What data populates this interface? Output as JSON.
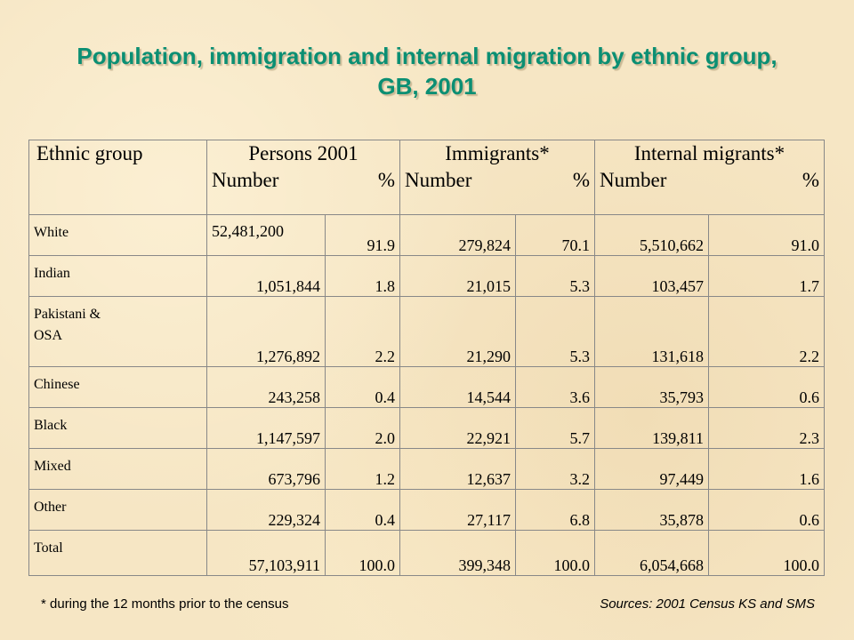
{
  "title": "Population, immigration and internal migration by ethnic group, GB, 2001",
  "header": {
    "ethnic_group": "Ethnic group",
    "persons": "Persons 2001",
    "immigrants": "Immigrants*",
    "internal": "Internal migrants*",
    "number": "Number",
    "percent": "%"
  },
  "rows": [
    {
      "label": "White",
      "persons_num": "52,481,200",
      "persons_pct": "91.9",
      "imm_num": "279,824",
      "imm_pct": "70.1",
      "int_num": "5,510,662",
      "int_pct": "91.0"
    },
    {
      "label": "Indian",
      "persons_num": "1,051,844",
      "persons_pct": "1.8",
      "imm_num": "21,015",
      "imm_pct": "5.3",
      "int_num": "103,457",
      "int_pct": "1.7"
    },
    {
      "label_line1": "Pakistani &",
      "label_line2": "OSA",
      "persons_num": "1,276,892",
      "persons_pct": "2.2",
      "imm_num": "21,290",
      "imm_pct": "5.3",
      "int_num": "131,618",
      "int_pct": "2.2"
    },
    {
      "label": "Chinese",
      "persons_num": "243,258",
      "persons_pct": "0.4",
      "imm_num": "14,544",
      "imm_pct": "3.6",
      "int_num": "35,793",
      "int_pct": "0.6"
    },
    {
      "label": "Black",
      "persons_num": "1,147,597",
      "persons_pct": "2.0",
      "imm_num": "22,921",
      "imm_pct": "5.7",
      "int_num": "139,811",
      "int_pct": "2.3"
    },
    {
      "label": "Mixed",
      "persons_num": "673,796",
      "persons_pct": "1.2",
      "imm_num": "12,637",
      "imm_pct": "3.2",
      "int_num": "97,449",
      "int_pct": "1.6"
    },
    {
      "label": "Other",
      "persons_num": "229,324",
      "persons_pct": "0.4",
      "imm_num": "27,117",
      "imm_pct": "6.8",
      "int_num": "35,878",
      "int_pct": "0.6"
    },
    {
      "label": "Total",
      "persons_num": "57,103,911",
      "persons_pct": "100.0",
      "imm_num": "399,348",
      "imm_pct": "100.0",
      "int_num": "6,054,668",
      "int_pct": "100.0"
    }
  ],
  "footnote": "* during the 12 months prior to the census",
  "sources": "Sources: 2001 Census KS and SMS"
}
